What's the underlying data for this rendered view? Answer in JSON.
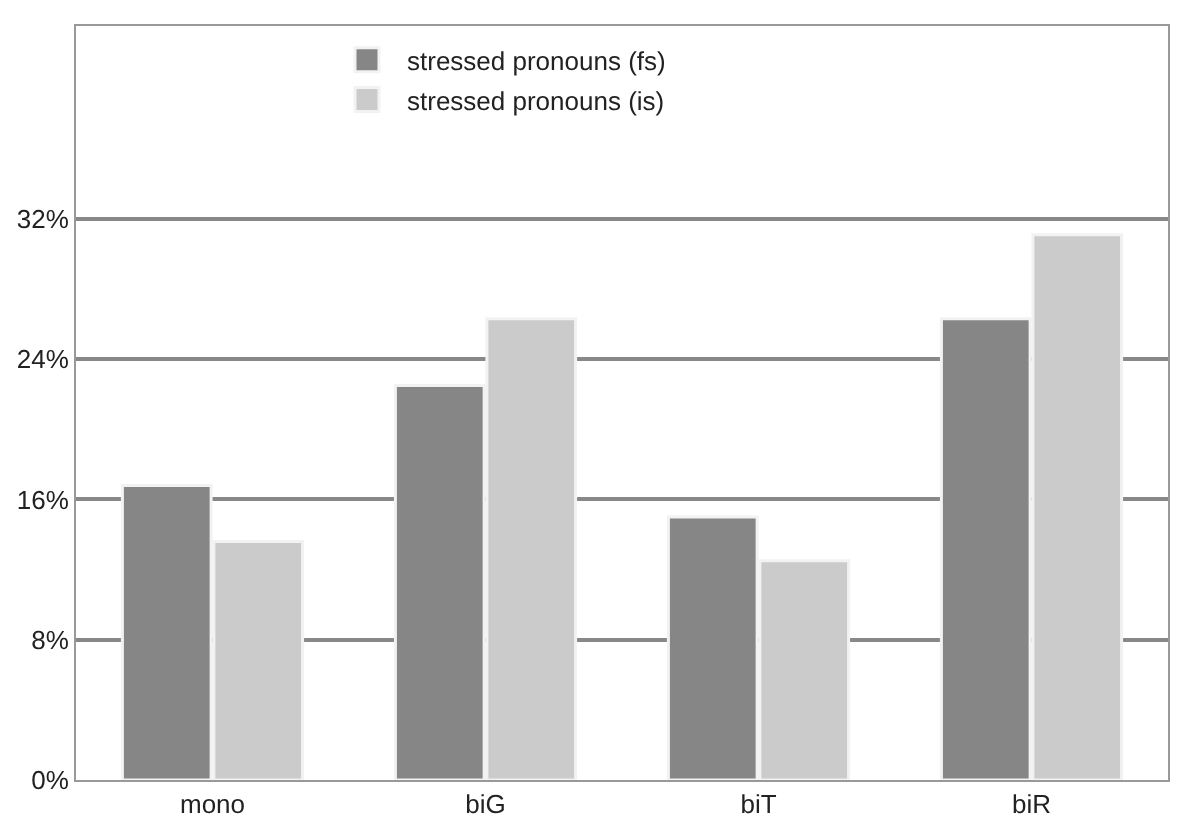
{
  "chart_data": {
    "type": "bar",
    "categories": [
      "mono",
      "biG",
      "biT",
      "biR"
    ],
    "series": [
      {
        "name": "stressed pronouns (fs)",
        "color": "#868686",
        "values": [
          16.8,
          22.5,
          15.0,
          26.3
        ]
      },
      {
        "name": "stressed pronouns (is)",
        "color": "#cbcbcb",
        "values": [
          13.6,
          26.3,
          12.5,
          31.1
        ]
      }
    ],
    "ylim": [
      0,
      43
    ],
    "yticks": [
      {
        "value": 0,
        "label": "0%"
      },
      {
        "value": 8,
        "label": "8%"
      },
      {
        "value": 16,
        "label": "16%"
      },
      {
        "value": 24,
        "label": "24%"
      },
      {
        "value": 32,
        "label": "32%"
      }
    ],
    "grid": "y",
    "legend": "top"
  }
}
